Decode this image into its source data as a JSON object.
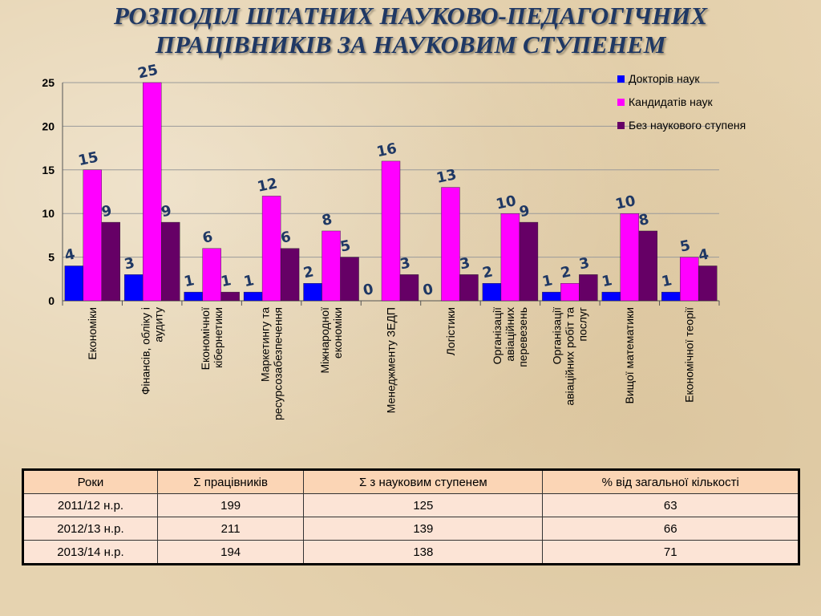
{
  "title_line1": "РОЗПОДІЛ ШТАТНИХ НАУКОВО-ПЕДАГОГІЧНИХ",
  "title_line2": "ПРАЦІВНИКІВ ЗА НАУКОВИМ СТУПЕНЕМ",
  "chart_data": {
    "type": "bar",
    "categories": [
      [
        "Економіки"
      ],
      [
        "Фінансів, обліку і",
        "аудиту"
      ],
      [
        "Економічної",
        "кібернетики"
      ],
      [
        "Маркетингу та",
        "ресурсозабезпечення"
      ],
      [
        "Міжнародної",
        "економіки"
      ],
      [
        "Менеджменту ЗЕДП"
      ],
      [
        "Логістики"
      ],
      [
        "Організації",
        "авіаційних",
        "перевезень"
      ],
      [
        "Організації",
        "авіаційних робіт та",
        "послуг"
      ],
      [
        "Вищої математики"
      ],
      [
        "Економічної теорії"
      ]
    ],
    "series": [
      {
        "name": "Докторів наук",
        "color": "#0000ff",
        "values": [
          4,
          3,
          1,
          1,
          2,
          0,
          0,
          2,
          1,
          1,
          1
        ]
      },
      {
        "name": "Кандидатів наук",
        "color": "#ff00ff",
        "values": [
          15,
          25,
          6,
          12,
          8,
          16,
          13,
          10,
          2,
          10,
          5
        ]
      },
      {
        "name": "Без наукового ступеня",
        "color": "#660066",
        "values": [
          9,
          9,
          1,
          6,
          5,
          3,
          3,
          9,
          3,
          8,
          4
        ]
      }
    ],
    "ylim": [
      0,
      25
    ],
    "yticks": [
      0,
      5,
      10,
      15,
      20,
      25
    ],
    "grid": true,
    "legend": "top-right",
    "label_color": "#1f3864"
  },
  "table": {
    "headers": [
      "Роки",
      "Σ працівників",
      "Σ з науковим ступенем",
      "% від загальної кількості"
    ],
    "rows": [
      [
        "2011/12 н.р.",
        "199",
        "125",
        "63"
      ],
      [
        "2012/13 н.р.",
        "211",
        "139",
        "66"
      ],
      [
        "2013/14 н.р.",
        "194",
        "138",
        "71"
      ]
    ]
  }
}
